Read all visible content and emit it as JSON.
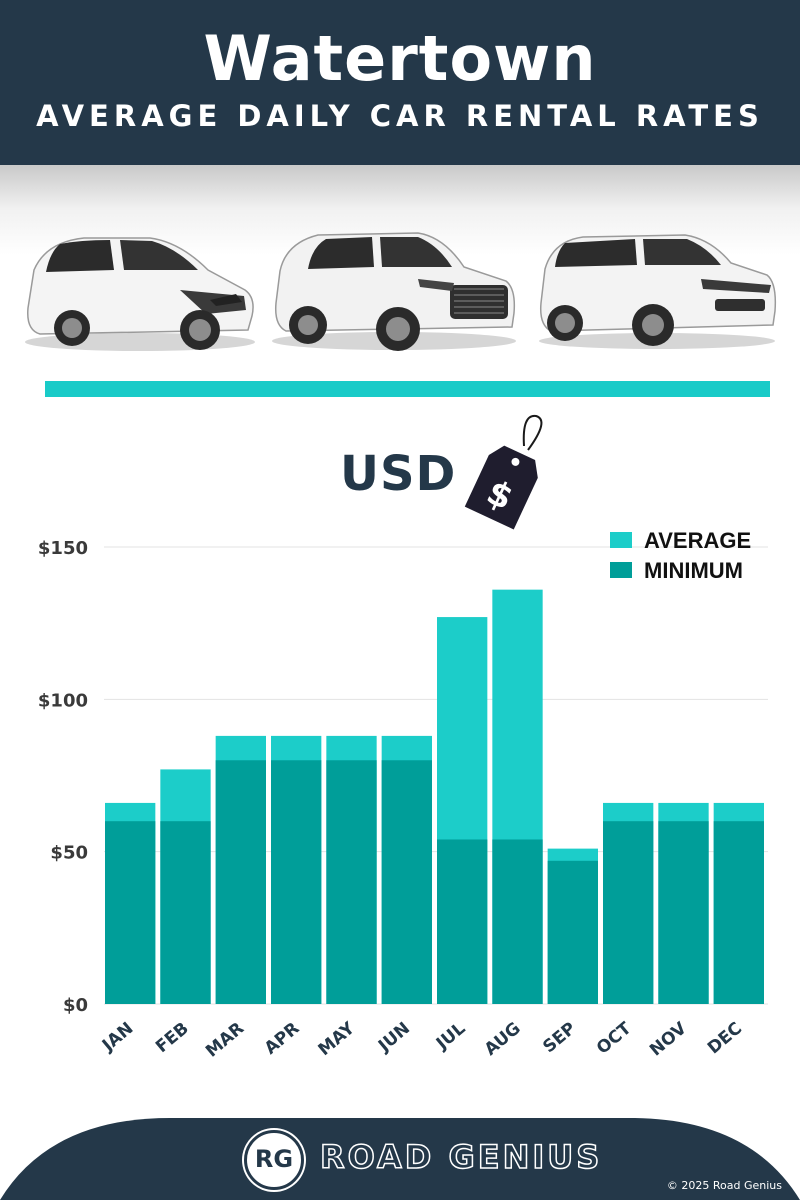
{
  "header": {
    "title": "Watertown",
    "subtitle": "AVERAGE DAILY CAR RENTAL RATES"
  },
  "currency": {
    "label": "USD",
    "tag_symbol": "$"
  },
  "colors": {
    "header_bg": "#243849",
    "accent": "#19cbc8",
    "average": "#1ccdc9",
    "minimum": "#009e99",
    "axis_text": "#3a3a3a",
    "month_text": "#243849"
  },
  "chart_data": {
    "type": "bar",
    "stacked": "overlay",
    "categories": [
      "JAN",
      "FEB",
      "MAR",
      "APR",
      "MAY",
      "JUN",
      "JUL",
      "AUG",
      "SEP",
      "OCT",
      "NOV",
      "DEC"
    ],
    "series": [
      {
        "name": "AVERAGE",
        "color": "#1ccdc9",
        "values": [
          66,
          77,
          88,
          88,
          88,
          88,
          127,
          136,
          51,
          66,
          66,
          66
        ]
      },
      {
        "name": "MINIMUM",
        "color": "#009e99",
        "values": [
          60,
          60,
          80,
          80,
          80,
          80,
          54,
          54,
          47,
          60,
          60,
          60
        ]
      }
    ],
    "y_ticks": [
      "$0",
      "$50",
      "$100",
      "$150"
    ],
    "y_tick_values": [
      0,
      50,
      100,
      150
    ],
    "ylim": [
      0,
      150
    ],
    "grid": true,
    "legend_position": "top-right"
  },
  "footer": {
    "brand": "ROAD GENIUS",
    "logo": "RG",
    "copyright": "© 2025 Road Genius"
  },
  "images": {
    "cars": [
      "hatchback-car-icon",
      "audi-suv-icon",
      "range-rover-suv-icon"
    ]
  }
}
